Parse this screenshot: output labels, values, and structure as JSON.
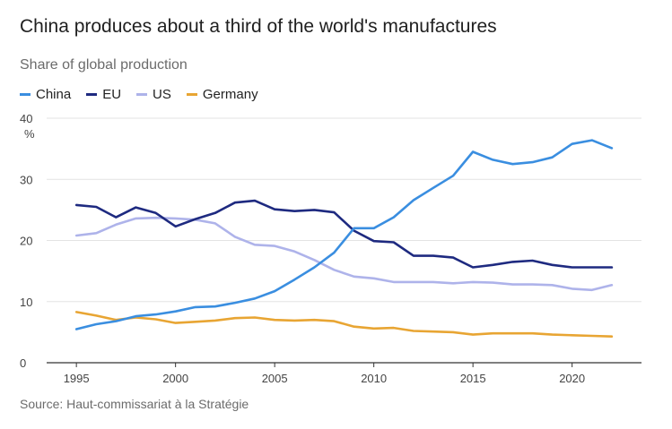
{
  "chart_data": {
    "type": "line",
    "title": "China produces about a third of the world's manufactures",
    "subtitle": "Share of global production",
    "ylabel": "%",
    "xlabel": "",
    "source": "Source: Haut-commissariat à la Stratégie",
    "xlim": [
      1993.5,
      2023.5
    ],
    "ylim": [
      0,
      40
    ],
    "x_ticks": [
      1995,
      2000,
      2005,
      2010,
      2015,
      2020
    ],
    "y_ticks": [
      0,
      10,
      20,
      30,
      40
    ],
    "grid": true,
    "legend_position": "top-left",
    "x": [
      1995,
      1996,
      1997,
      1998,
      1999,
      2000,
      2001,
      2002,
      2003,
      2004,
      2005,
      2006,
      2007,
      2008,
      2009,
      2010,
      2011,
      2012,
      2013,
      2014,
      2015,
      2016,
      2017,
      2018,
      2019,
      2020,
      2021,
      2022
    ],
    "series": [
      {
        "name": "China",
        "color": "#3a8ee0",
        "values": [
          5.5,
          6.3,
          6.8,
          7.6,
          7.9,
          8.4,
          9.1,
          9.2,
          9.8,
          10.5,
          11.7,
          13.6,
          15.6,
          18.0,
          22.0,
          22.0,
          23.8,
          26.6,
          28.6,
          30.6,
          34.5,
          33.2,
          32.5,
          32.8,
          33.6,
          35.8,
          36.4,
          35.1
        ]
      },
      {
        "name": "EU",
        "color": "#1e2a80",
        "values": [
          25.8,
          25.5,
          23.8,
          25.4,
          24.5,
          22.3,
          23.5,
          24.5,
          26.2,
          26.5,
          25.1,
          24.8,
          25.0,
          24.6,
          21.6,
          19.9,
          19.7,
          17.5,
          17.5,
          17.2,
          15.6,
          16.0,
          16.5,
          16.7,
          16.0,
          15.6,
          15.6,
          15.6
        ]
      },
      {
        "name": "US",
        "color": "#aeb3ea",
        "values": [
          20.8,
          21.2,
          22.6,
          23.6,
          23.7,
          23.6,
          23.4,
          22.8,
          20.6,
          19.3,
          19.1,
          18.2,
          16.8,
          15.2,
          14.1,
          13.8,
          13.2,
          13.2,
          13.2,
          13.0,
          13.2,
          13.1,
          12.8,
          12.8,
          12.7,
          12.1,
          11.9,
          12.7
        ]
      },
      {
        "name": "Germany",
        "color": "#e8a533",
        "values": [
          8.3,
          7.7,
          7.0,
          7.4,
          7.1,
          6.5,
          6.7,
          6.9,
          7.3,
          7.4,
          7.0,
          6.9,
          7.0,
          6.8,
          5.9,
          5.6,
          5.7,
          5.2,
          5.1,
          5.0,
          4.6,
          4.8,
          4.8,
          4.8,
          4.6,
          4.5,
          4.4,
          4.3
        ]
      }
    ]
  }
}
